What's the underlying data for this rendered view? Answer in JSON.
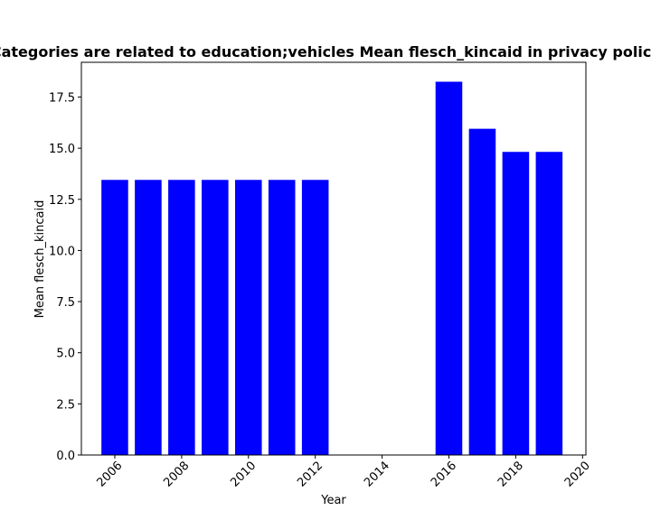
{
  "chart_data": {
    "type": "bar",
    "title": "Categories are related to education;vehicles Mean flesch_kincaid in privacy policies",
    "xlabel": "Year",
    "ylabel": "Mean flesch_kincaid",
    "x": [
      2006,
      2007,
      2008,
      2009,
      2010,
      2011,
      2012,
      2016,
      2017,
      2018,
      2019
    ],
    "values": [
      13.45,
      13.45,
      13.45,
      13.45,
      13.45,
      13.45,
      13.45,
      18.25,
      15.95,
      14.82,
      14.82
    ],
    "xlim": [
      2005.0,
      2020.1
    ],
    "ylim": [
      0,
      19.2
    ],
    "xticks": [
      2006,
      2008,
      2010,
      2012,
      2014,
      2016,
      2018,
      2020
    ],
    "yticks": [
      "0.0",
      "2.5",
      "5.0",
      "7.5",
      "10.0",
      "12.5",
      "15.0",
      "17.5"
    ],
    "bar_color": "#0000ff",
    "grid": false,
    "legend": "none"
  }
}
